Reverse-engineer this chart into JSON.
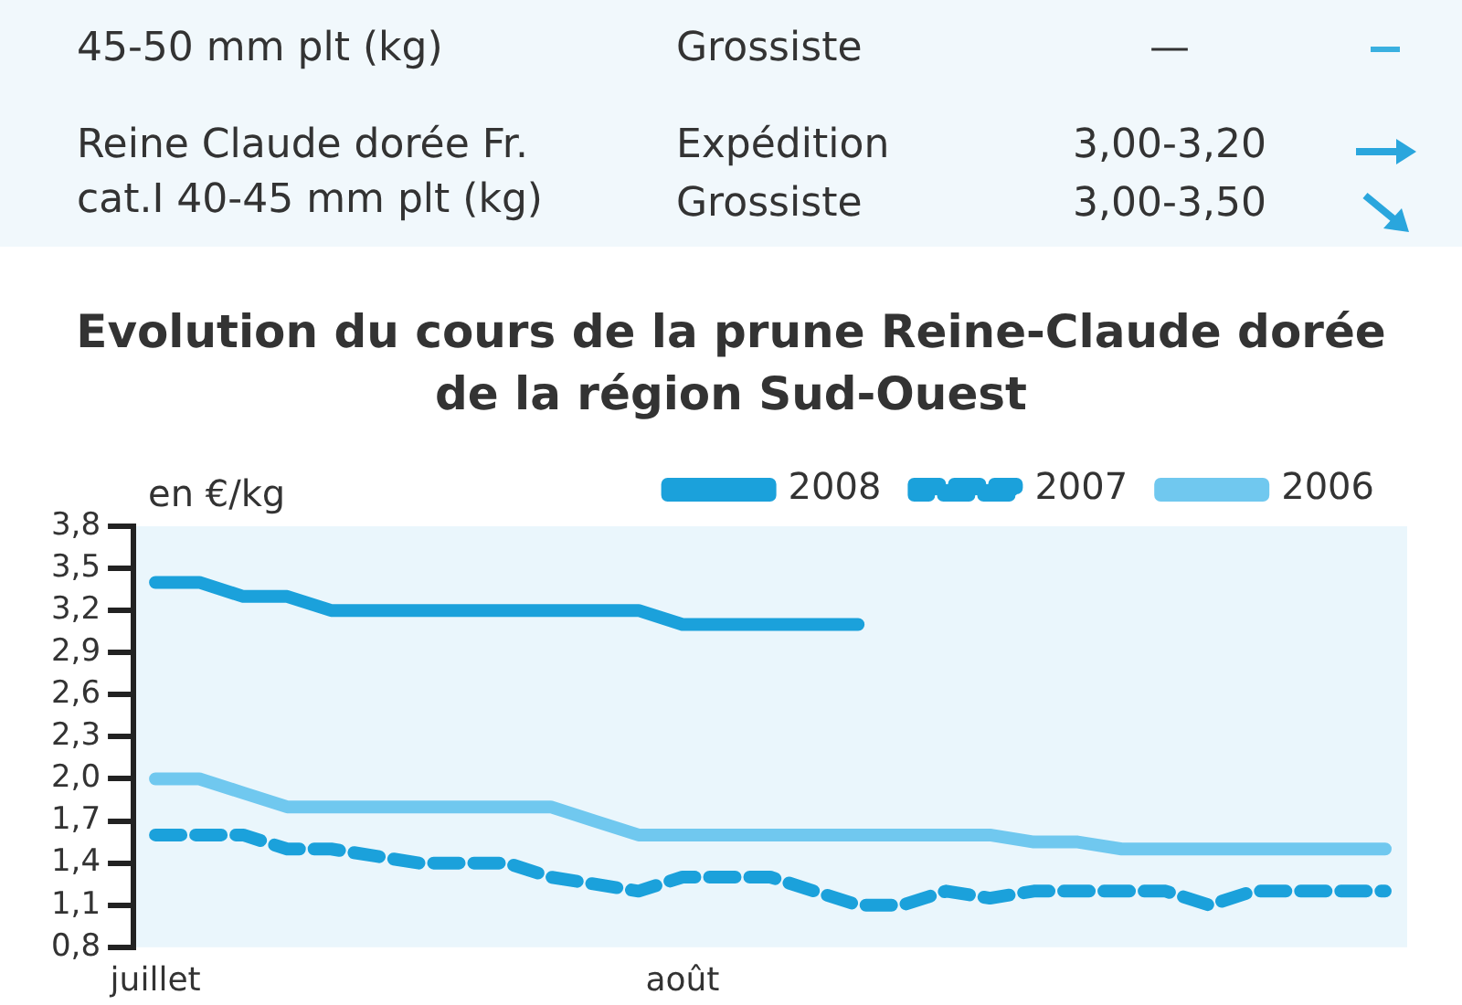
{
  "chart_data": {
    "type": "line",
    "title": "Evolution du cours de la prune Reine-Claude dorée de la région Sud-Ouest",
    "ylabel": "en €/kg",
    "categories": [
      "juillet",
      null,
      null,
      null,
      null,
      null,
      null,
      null,
      null,
      null,
      null,
      null,
      "août",
      null,
      null,
      null,
      null,
      null,
      null,
      null,
      null,
      null,
      null,
      null,
      null,
      null,
      null,
      null,
      null
    ],
    "series": [
      {
        "name": "2008",
        "color": "#1ba1db",
        "line_style": "solid",
        "values": [
          3.4,
          3.4,
          3.3,
          3.3,
          3.2,
          3.2,
          3.2,
          3.2,
          3.2,
          3.2,
          3.2,
          3.2,
          3.1,
          3.1,
          3.1,
          3.1,
          3.1,
          null,
          null,
          null,
          null,
          null,
          null,
          null,
          null,
          null,
          null,
          null,
          null
        ]
      },
      {
        "name": "2007",
        "color": "#1ba1db",
        "line_style": "dashed",
        "values": [
          1.6,
          1.6,
          1.6,
          1.5,
          1.5,
          1.45,
          1.4,
          1.4,
          1.4,
          1.3,
          1.25,
          1.2,
          1.3,
          1.3,
          1.3,
          1.2,
          1.1,
          1.1,
          1.2,
          1.15,
          1.2,
          1.2,
          1.2,
          1.2,
          1.1,
          1.2,
          1.2,
          1.2,
          1.2
        ]
      },
      {
        "name": "2006",
        "color": "#70c8ef",
        "line_style": "solid",
        "values": [
          2.0,
          2.0,
          1.9,
          1.8,
          1.8,
          1.8,
          1.8,
          1.8,
          1.8,
          1.8,
          1.7,
          1.6,
          1.6,
          1.6,
          1.6,
          1.6,
          1.6,
          1.6,
          1.6,
          1.6,
          1.55,
          1.55,
          1.5,
          1.5,
          1.5,
          1.5,
          1.5,
          1.5,
          1.5
        ]
      }
    ],
    "ylim": [
      0.8,
      3.8
    ],
    "yticks": [
      {
        "value": 0.8,
        "label": "0,8"
      },
      {
        "value": 1.1,
        "label": "1,1"
      },
      {
        "value": 1.4,
        "label": "1,4"
      },
      {
        "value": 1.7,
        "label": "1,7"
      },
      {
        "value": 2.0,
        "label": "2,0"
      },
      {
        "value": 2.3,
        "label": "2,3"
      },
      {
        "value": 2.6,
        "label": "2,6"
      },
      {
        "value": 2.9,
        "label": "2,9"
      },
      {
        "value": 3.2,
        "label": "3,2"
      },
      {
        "value": 3.5,
        "label": "3,5"
      },
      {
        "value": 3.8,
        "label": "3,8"
      }
    ],
    "grid": false,
    "legend": "top right",
    "marker": "none",
    "annotations": [
      "45-50 mm plt (kg)",
      "Grossiste",
      "—",
      "Reine Claude dorée Fr. cat.I 40-45 mm plt (kg)",
      "Expédition",
      "3,00-3,20",
      "Grossiste",
      "3,00-3,50"
    ]
  }
}
